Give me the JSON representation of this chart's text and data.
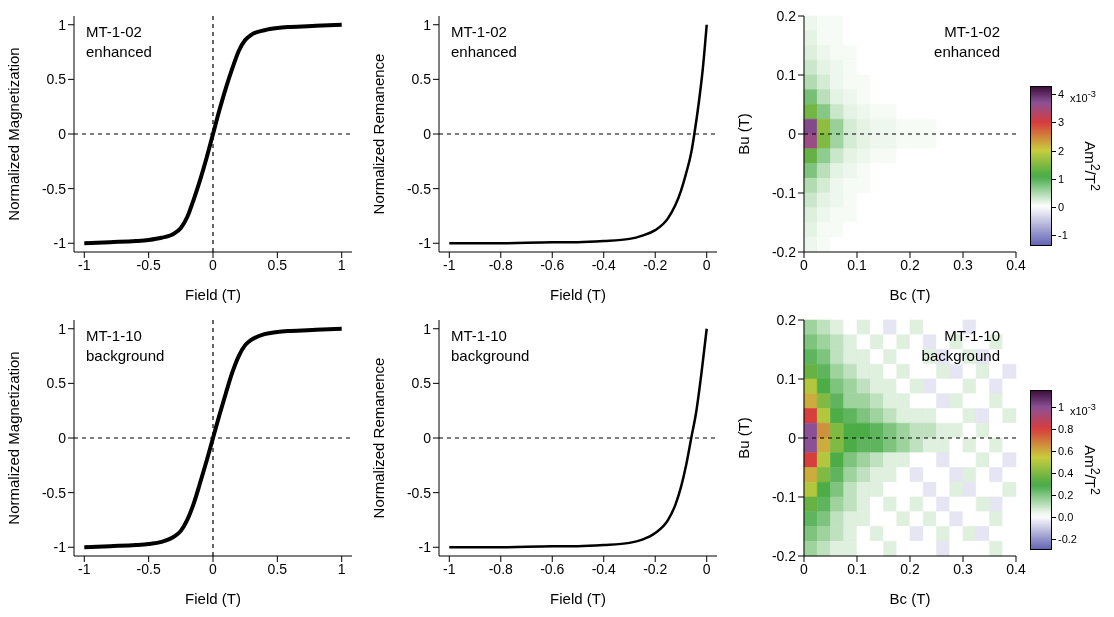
{
  "chart_data": [
    {
      "type": "line",
      "xlabel": "Field (T)",
      "ylabel": "Normalized Magnetization",
      "annotations": [
        "MT-1-02\nenhanced"
      ],
      "color": "#000000",
      "xlim": [
        -1.08,
        1.08
      ],
      "ylim": [
        -1.08,
        1.08
      ],
      "xticks": [
        -1,
        -0.5,
        0,
        0.5,
        1
      ],
      "yticks": [
        -1,
        -0.5,
        0,
        0.5,
        1
      ],
      "ref_lines": [
        {
          "axis": "y",
          "value": 0,
          "line_style": "dashed",
          "color": "#000000"
        },
        {
          "axis": "x",
          "value": 0,
          "line_style": "dashed",
          "color": "#000000"
        }
      ],
      "x": [
        -1,
        -0.8,
        -0.6,
        -0.5,
        -0.4,
        -0.3,
        -0.25,
        -0.2,
        -0.15,
        -0.1,
        -0.05,
        0,
        0.05,
        0.1,
        0.15,
        0.2,
        0.25,
        0.3,
        0.4,
        0.5,
        0.6,
        0.8,
        1
      ],
      "values": [
        -1,
        -0.99,
        -0.98,
        -0.97,
        -0.95,
        -0.91,
        -0.86,
        -0.76,
        -0.6,
        -0.42,
        -0.22,
        0,
        0.22,
        0.42,
        0.6,
        0.76,
        0.86,
        0.91,
        0.95,
        0.97,
        0.98,
        0.99,
        1
      ]
    },
    {
      "type": "line",
      "xlabel": "Field (T)",
      "ylabel": "Normalized Remanence",
      "annotations": [
        "MT-1-02\nenhanced"
      ],
      "color": "#000000",
      "xlim": [
        -1.04,
        0.04
      ],
      "ylim": [
        -1.08,
        1.08
      ],
      "xticks": [
        -1,
        -0.8,
        -0.6,
        -0.4,
        -0.2,
        0
      ],
      "yticks": [
        -1,
        -0.5,
        0,
        0.5,
        1
      ],
      "ref_lines": [
        {
          "axis": "y",
          "value": 0,
          "line_style": "dashed",
          "color": "#000000"
        }
      ],
      "x": [
        -1,
        -0.8,
        -0.6,
        -0.5,
        -0.4,
        -0.3,
        -0.25,
        -0.2,
        -0.15,
        -0.1,
        -0.08,
        -0.06,
        -0.048,
        -0.03,
        -0.015,
        0
      ],
      "values": [
        -1,
        -1,
        -0.99,
        -0.99,
        -0.98,
        -0.96,
        -0.93,
        -0.88,
        -0.77,
        -0.52,
        -0.36,
        -0.17,
        0,
        0.3,
        0.6,
        1
      ]
    },
    {
      "type": "heatmap",
      "xlabel": "Bc (T)",
      "ylabel": "Bu (T)",
      "clabel": "Am$^{2}$/T$^{2}$",
      "annotations": [
        "MT-1-02\nenhanced",
        "x10$^{-3}$"
      ],
      "xlim": [
        0,
        0.4
      ],
      "ylim": [
        -0.2,
        0.2
      ],
      "xticks": [
        0,
        0.1,
        0.2,
        0.3,
        0.4
      ],
      "yticks": [
        -0.2,
        -0.1,
        0,
        0.1,
        0.2
      ],
      "clim": [
        -1.4,
        4.3
      ],
      "cticks": [
        -1,
        0,
        1,
        2,
        3,
        4
      ],
      "ref_lines": [
        {
          "axis": "y",
          "value": 0,
          "line_style": "dashed",
          "color": "#000000"
        }
      ],
      "cells": [
        [
          0.1,
          0.05,
          0.05,
          0,
          0,
          0,
          0,
          0,
          0,
          0,
          0,
          0,
          0,
          0,
          0,
          0
        ],
        [
          0.15,
          0.05,
          0.05,
          0,
          0,
          0,
          0,
          0,
          0,
          0,
          0,
          0,
          0,
          0,
          0,
          0
        ],
        [
          0.2,
          0.1,
          0.05,
          0.05,
          0,
          0,
          0,
          0,
          0,
          0,
          0,
          0,
          0,
          0,
          0,
          0
        ],
        [
          0.3,
          0.15,
          0.1,
          0.05,
          0,
          0,
          0,
          0,
          0,
          0,
          0,
          0,
          0,
          0,
          0,
          0
        ],
        [
          0.45,
          0.25,
          0.1,
          0.05,
          0.05,
          0,
          0,
          0,
          0,
          0,
          0,
          0,
          0,
          0,
          0,
          0
        ],
        [
          0.8,
          0.4,
          0.15,
          0.1,
          0.05,
          0,
          0,
          0,
          0,
          0,
          0,
          0,
          0,
          0,
          0,
          0
        ],
        [
          1.4,
          0.7,
          0.3,
          0.15,
          0.1,
          0.05,
          0.05,
          0,
          0,
          0,
          0,
          0,
          0,
          0,
          0,
          0
        ],
        [
          3.8,
          1.6,
          0.6,
          0.25,
          0.15,
          0.1,
          0.1,
          0.05,
          0.05,
          0.05,
          0,
          0,
          0,
          0,
          0,
          0
        ],
        [
          3.6,
          1.5,
          0.55,
          0.25,
          0.15,
          0.1,
          0.1,
          0.05,
          0.05,
          0.05,
          0,
          0,
          0,
          0,
          0,
          0
        ],
        [
          1.3,
          0.65,
          0.3,
          0.15,
          0.1,
          0.05,
          0.05,
          0,
          0,
          0,
          0,
          0,
          0,
          0,
          0,
          0
        ],
        [
          0.75,
          0.4,
          0.15,
          0.1,
          0.05,
          0,
          0,
          0,
          0,
          0,
          0,
          0,
          0,
          0,
          0,
          0
        ],
        [
          0.45,
          0.25,
          0.1,
          0.05,
          0.05,
          0,
          0,
          0,
          0,
          0,
          0,
          0,
          0,
          0,
          0,
          0
        ],
        [
          0.3,
          0.15,
          0.1,
          0.05,
          0,
          0,
          0,
          0,
          0,
          0,
          0,
          0,
          0,
          0,
          0,
          0
        ],
        [
          0.2,
          0.1,
          0.05,
          0.05,
          0,
          0,
          0,
          0,
          0,
          0,
          0,
          0,
          0,
          0,
          0,
          0
        ],
        [
          0.15,
          0.05,
          0.05,
          0,
          0,
          0,
          0,
          0,
          0,
          0,
          0,
          0,
          0,
          0,
          0,
          0
        ],
        [
          0.1,
          0.05,
          0,
          0,
          0,
          0,
          0,
          0,
          0,
          0,
          0,
          0,
          0,
          0,
          0,
          0
        ]
      ]
    },
    {
      "type": "line",
      "xlabel": "Field (T)",
      "ylabel": "Normalized Magnetization",
      "annotations": [
        "MT-1-10\nbackground"
      ],
      "color": "#000000",
      "xlim": [
        -1.08,
        1.08
      ],
      "ylim": [
        -1.08,
        1.08
      ],
      "xticks": [
        -1,
        -0.5,
        0,
        0.5,
        1
      ],
      "yticks": [
        -1,
        -0.5,
        0,
        0.5,
        1
      ],
      "ref_lines": [
        {
          "axis": "y",
          "value": 0,
          "line_style": "dashed",
          "color": "#000000"
        },
        {
          "axis": "x",
          "value": 0,
          "line_style": "dashed",
          "color": "#000000"
        }
      ],
      "x": [
        -1,
        -0.8,
        -0.6,
        -0.5,
        -0.4,
        -0.3,
        -0.25,
        -0.2,
        -0.15,
        -0.1,
        -0.05,
        0,
        0.05,
        0.1,
        0.15,
        0.2,
        0.25,
        0.3,
        0.4,
        0.5,
        0.6,
        0.8,
        1
      ],
      "values": [
        -1,
        -0.99,
        -0.98,
        -0.97,
        -0.95,
        -0.9,
        -0.85,
        -0.75,
        -0.6,
        -0.41,
        -0.21,
        0,
        0.21,
        0.41,
        0.6,
        0.75,
        0.85,
        0.9,
        0.95,
        0.97,
        0.98,
        0.99,
        1
      ]
    },
    {
      "type": "line",
      "xlabel": "Field (T)",
      "ylabel": "Normalized Remanence",
      "annotations": [
        "MT-1-10\nbackground"
      ],
      "color": "#000000",
      "xlim": [
        -1.04,
        0.04
      ],
      "ylim": [
        -1.08,
        1.08
      ],
      "xticks": [
        -1,
        -0.8,
        -0.6,
        -0.4,
        -0.2,
        0
      ],
      "yticks": [
        -1,
        -0.5,
        0,
        0.5,
        1
      ],
      "ref_lines": [
        {
          "axis": "y",
          "value": 0,
          "line_style": "dashed",
          "color": "#000000"
        }
      ],
      "x": [
        -1,
        -0.8,
        -0.6,
        -0.5,
        -0.4,
        -0.3,
        -0.25,
        -0.2,
        -0.15,
        -0.12,
        -0.1,
        -0.08,
        -0.06,
        -0.04,
        -0.02,
        0
      ],
      "values": [
        -1,
        -1,
        -0.99,
        -0.99,
        -0.98,
        -0.96,
        -0.93,
        -0.87,
        -0.75,
        -0.6,
        -0.45,
        -0.25,
        0,
        0.25,
        0.6,
        1
      ]
    },
    {
      "type": "heatmap",
      "xlabel": "Bc (T)",
      "ylabel": "Bu (T)",
      "clabel": "Am$^{2}$/T$^{2}$",
      "annotations": [
        "MT-1-10\nbackground",
        "x10$^{-3}$"
      ],
      "xlim": [
        0,
        0.4
      ],
      "ylim": [
        -0.2,
        0.2
      ],
      "xticks": [
        0,
        0.1,
        0.2,
        0.3,
        0.4
      ],
      "yticks": [
        -0.2,
        -0.1,
        0,
        0.1,
        0.2
      ],
      "clim": [
        -0.3,
        1.15
      ],
      "cticks": [
        -0.2,
        {
          "value": 0,
          "label": "0.0"
        },
        0.2,
        0.4,
        0.6,
        0.8,
        1
      ],
      "ref_lines": [
        {
          "axis": "y",
          "value": 0,
          "line_style": "dashed",
          "color": "#000000"
        }
      ],
      "cells": [
        [
          0.15,
          0.1,
          0.05,
          0,
          0.05,
          0,
          -0.05,
          0,
          0.05,
          0,
          0,
          0,
          -0.05,
          0,
          0,
          0
        ],
        [
          0.2,
          0.15,
          0.1,
          0.05,
          0,
          0.05,
          0,
          0.05,
          0,
          -0.05,
          0,
          0.05,
          0,
          0,
          0.05,
          0
        ],
        [
          0.25,
          0.2,
          0.1,
          0.05,
          0.05,
          0,
          0.05,
          0,
          0,
          0.05,
          -0.05,
          0,
          0.05,
          -0.05,
          0,
          0
        ],
        [
          0.35,
          0.25,
          0.15,
          0.1,
          0.05,
          0.05,
          0,
          0.05,
          0,
          0,
          0.05,
          -0.05,
          0,
          0.05,
          0,
          -0.05
        ],
        [
          0.5,
          0.3,
          0.2,
          0.15,
          0.1,
          0.05,
          0.05,
          0,
          0.05,
          -0.05,
          0,
          0,
          0.05,
          0,
          -0.05,
          0
        ],
        [
          0.6,
          0.4,
          0.25,
          0.15,
          0.15,
          0.1,
          0.05,
          0.05,
          0,
          0,
          -0.05,
          0.05,
          0,
          0,
          0.05,
          0
        ],
        [
          0.8,
          0.5,
          0.3,
          0.25,
          0.2,
          0.15,
          0.1,
          0.05,
          0.05,
          0.05,
          0,
          0,
          0.05,
          -0.05,
          0,
          0.05
        ],
        [
          1,
          0.65,
          0.4,
          0.3,
          0.3,
          0.25,
          0.2,
          0.15,
          0.1,
          0.1,
          0.05,
          0.05,
          0,
          0.05,
          0,
          0
        ],
        [
          1,
          0.6,
          0.4,
          0.3,
          0.25,
          0.25,
          0.2,
          0.15,
          0.1,
          0.05,
          0.05,
          0,
          0.05,
          0,
          0.05,
          0
        ],
        [
          0.8,
          0.5,
          0.3,
          0.2,
          0.15,
          0.1,
          0.05,
          0.05,
          0,
          0,
          -0.05,
          0,
          0,
          0.05,
          0,
          -0.05
        ],
        [
          0.6,
          0.4,
          0.25,
          0.15,
          0.1,
          0.05,
          0.05,
          0,
          -0.05,
          0,
          0,
          -0.05,
          0.05,
          0,
          -0.05,
          0
        ],
        [
          0.5,
          0.3,
          0.2,
          0.1,
          0.05,
          0.05,
          0,
          0,
          0,
          -0.05,
          0,
          0.05,
          -0.05,
          0,
          0,
          0.05
        ],
        [
          0.35,
          0.25,
          0.15,
          0.1,
          0.05,
          0,
          0.05,
          0,
          0.05,
          0,
          -0.05,
          0,
          0,
          0.05,
          -0.05,
          0
        ],
        [
          0.25,
          0.2,
          0.1,
          0.05,
          0.05,
          0,
          0,
          0.05,
          0,
          0.05,
          0,
          -0.05,
          0,
          0,
          0.05,
          0
        ],
        [
          0.2,
          0.15,
          0.1,
          0.05,
          0,
          0.05,
          0,
          0,
          -0.05,
          0,
          0.05,
          0,
          0.05,
          -0.05,
          0,
          0
        ],
        [
          0.15,
          0.1,
          0.05,
          0.05,
          0,
          0,
          0.05,
          0,
          0,
          0,
          -0.05,
          0,
          0,
          0,
          0.05,
          0
        ]
      ]
    }
  ]
}
